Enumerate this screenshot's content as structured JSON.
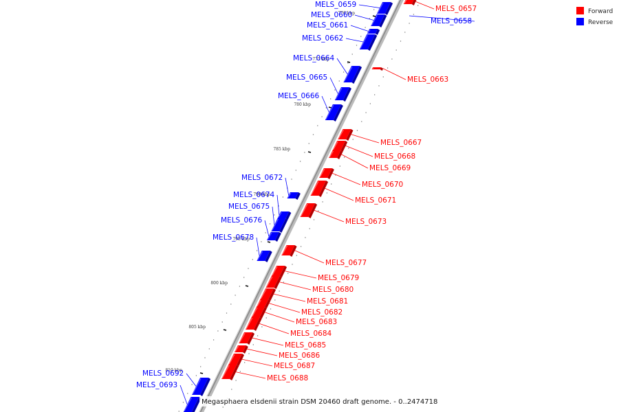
{
  "legend": {
    "items": [
      {
        "label": "Forward",
        "color": "#ff0000"
      },
      {
        "label": "Reverse",
        "color": "#0000ff"
      }
    ]
  },
  "caption": "Megasphaera elsdenii strain DSM 20460 draft genome. - 0..2474718",
  "colors": {
    "forward": "#ff0000",
    "reverse": "#0000ff",
    "backbone": "#999999"
  },
  "chart_data": {
    "type": "genome-map",
    "ticks": [
      {
        "kbp": 776,
        "label": "776 kbp"
      },
      {
        "kbp": 775,
        "label": "775 kbp"
      },
      {
        "kbp": 780,
        "label": "780 kbp"
      },
      {
        "kbp": 785,
        "label": "785 kbp"
      },
      {
        "kbp": 790,
        "label": "790 kbp"
      },
      {
        "kbp": 795,
        "label": "795 kbp"
      },
      {
        "kbp": 800,
        "label": "800 kbp"
      },
      {
        "kbp": 805,
        "label": "805 kbp"
      },
      {
        "kbp": 810,
        "label": "810 kbp"
      }
    ],
    "genes": [
      {
        "name": "MELS_0657",
        "strand": "forward"
      },
      {
        "name": "MELS_0658",
        "strand": "reverse"
      },
      {
        "name": "MELS_0659",
        "strand": "reverse"
      },
      {
        "name": "MELS_0660",
        "strand": "reverse"
      },
      {
        "name": "MELS_0661",
        "strand": "reverse"
      },
      {
        "name": "MELS_0662",
        "strand": "reverse"
      },
      {
        "name": "MELS_0663",
        "strand": "forward"
      },
      {
        "name": "MELS_0664",
        "strand": "reverse"
      },
      {
        "name": "MELS_0665",
        "strand": "reverse"
      },
      {
        "name": "MELS_0666",
        "strand": "reverse"
      },
      {
        "name": "MELS_0667",
        "strand": "forward"
      },
      {
        "name": "MELS_0668",
        "strand": "forward"
      },
      {
        "name": "MELS_0669",
        "strand": "forward"
      },
      {
        "name": "MELS_0670",
        "strand": "forward"
      },
      {
        "name": "MELS_0671",
        "strand": "forward"
      },
      {
        "name": "MELS_0672",
        "strand": "reverse"
      },
      {
        "name": "MELS_0673",
        "strand": "forward"
      },
      {
        "name": "MELS_0674",
        "strand": "reverse"
      },
      {
        "name": "MELS_0675",
        "strand": "reverse"
      },
      {
        "name": "MELS_0676",
        "strand": "reverse"
      },
      {
        "name": "MELS_0677",
        "strand": "forward"
      },
      {
        "name": "MELS_0678",
        "strand": "reverse"
      },
      {
        "name": "MELS_0679",
        "strand": "forward"
      },
      {
        "name": "MELS_0680",
        "strand": "forward"
      },
      {
        "name": "MELS_0681",
        "strand": "forward"
      },
      {
        "name": "MELS_0682",
        "strand": "forward"
      },
      {
        "name": "MELS_0683",
        "strand": "forward"
      },
      {
        "name": "MELS_0684",
        "strand": "forward"
      },
      {
        "name": "MELS_0685",
        "strand": "forward"
      },
      {
        "name": "MELS_0686",
        "strand": "forward"
      },
      {
        "name": "MELS_0687",
        "strand": "forward"
      },
      {
        "name": "MELS_0688",
        "strand": "forward"
      },
      {
        "name": "MELS_0692",
        "strand": "reverse"
      },
      {
        "name": "MELS_0693",
        "strand": "reverse"
      }
    ]
  }
}
